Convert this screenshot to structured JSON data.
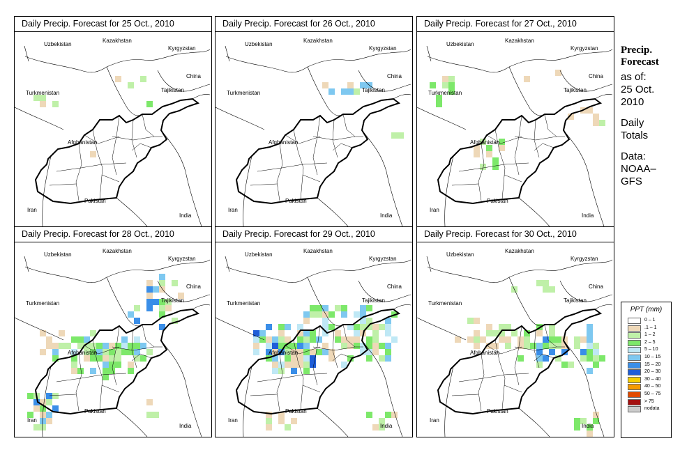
{
  "panels": [
    {
      "title": "Daily Precip. Forecast for  25 Oct., 2010",
      "day": 0
    },
    {
      "title": "Daily Precip. Forecast for  26 Oct., 2010",
      "day": 1
    },
    {
      "title": "Daily Precip. Forecast for  27 Oct., 2010",
      "day": 2
    },
    {
      "title": "Daily Precip. Forecast for  28 Oct., 2010",
      "day": 3
    },
    {
      "title": "Daily Precip. Forecast for  29 Oct., 2010",
      "day": 4
    },
    {
      "title": "Daily Precip. Forecast for  30 Oct., 2010",
      "day": 5
    }
  ],
  "map_labels": {
    "uzbekistan": "Uzbekistan",
    "kazakhstan": "Kazakhstan",
    "kyrgyzstan": "Kyrgyzstan",
    "china": "China",
    "turkmenistan": "Turkmenistan",
    "tajikistan": "Tajikistan",
    "afghanistan": "Afghanistan",
    "iran": "Iran",
    "pakistan": "Pakistan",
    "india": "India"
  },
  "side": {
    "heading_line1": "Precip.",
    "heading_line2": "Forecast",
    "asof_line1": "as of:",
    "asof_line2": "25 Oct.",
    "asof_line3": "2010",
    "daily_line1": "Daily",
    "daily_line2": "Totals",
    "data_line1": "Data:",
    "data_line2": "NOAA–",
    "data_line3": "GFS"
  },
  "legend": {
    "title": "PPT (mm)",
    "items": [
      {
        "label": "0 – 1",
        "color": "#ffffff"
      },
      {
        "label": ".1 – 1",
        "color": "#eed8b8"
      },
      {
        "label": "1 – 2",
        "color": "#bff0a8"
      },
      {
        "label": "2 – 5",
        "color": "#7de86a"
      },
      {
        "label": "5 – 10",
        "color": "#bfe8f5"
      },
      {
        "label": "10 – 15",
        "color": "#7ec8f0"
      },
      {
        "label": "15 – 20",
        "color": "#3a8ee8"
      },
      {
        "label": "20 – 30",
        "color": "#1f5ed8"
      },
      {
        "label": "30 – 40",
        "color": "#f6d000"
      },
      {
        "label": "40 – 50",
        "color": "#f59b00"
      },
      {
        "label": "50 – 75",
        "color": "#e24a00"
      },
      {
        "label": "> 75",
        "color": "#a41010"
      },
      {
        "label": "nodata",
        "color": "#cccccc"
      }
    ]
  }
}
